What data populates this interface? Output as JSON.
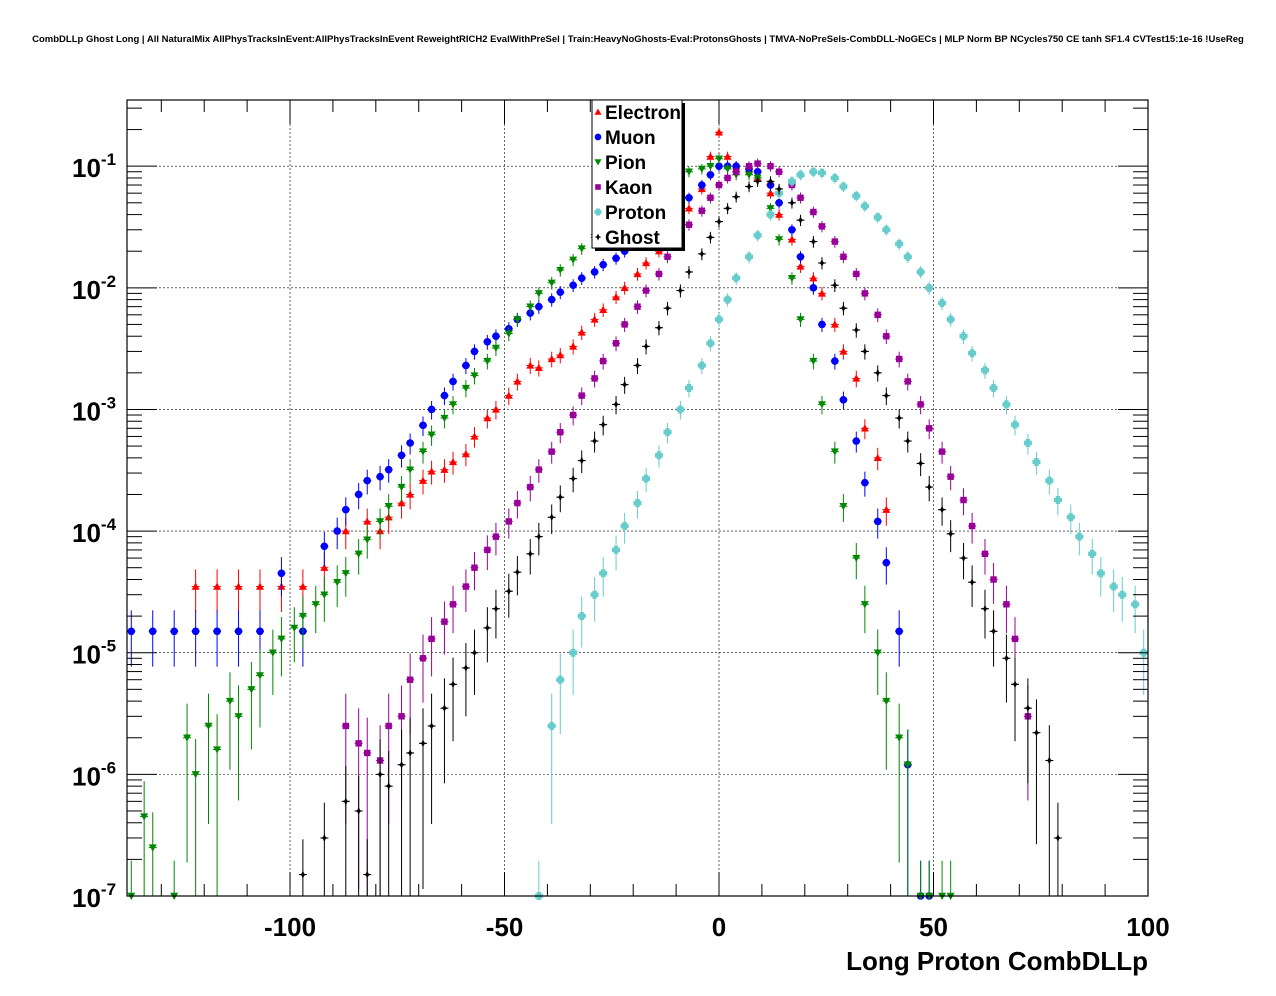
{
  "chart_data": {
    "type": "scatter",
    "title": "CombDLLp Ghost Long | All NaturalMix AllPhysTracksInEvent:AllPhysTracksInEvent ReweightRICH2 EvalWithPreSel | Train:HeavyNoGhosts-Eval:ProtonsGhosts | TMVA-NoPreSels-CombDLL-NoGECs | MLP Norm BP NCycles750 CE tanh SF1.4 CVTest15:1e-16 !UseReg",
    "xlabel": "Long Proton CombDLLp",
    "ylabel": "",
    "xlim": [
      -138,
      100
    ],
    "ylim": [
      1e-07,
      0.35
    ],
    "yscale": "log",
    "grid": true,
    "legend_position": "top-center",
    "xticks": [
      {
        "value": -100,
        "label": "-100"
      },
      {
        "value": -50,
        "label": "-50"
      },
      {
        "value": 0,
        "label": "0"
      },
      {
        "value": 50,
        "label": "50"
      },
      {
        "value": 100,
        "label": "100"
      }
    ],
    "yticks": [
      {
        "value": 1e-07,
        "base": "10",
        "exp": "-7"
      },
      {
        "value": 1e-06,
        "base": "10",
        "exp": "-6"
      },
      {
        "value": 1e-05,
        "base": "10",
        "exp": "-5"
      },
      {
        "value": 0.0001,
        "base": "10",
        "exp": "-4"
      },
      {
        "value": 0.001,
        "base": "10",
        "exp": "-3"
      },
      {
        "value": 0.01,
        "base": "10",
        "exp": "-2"
      },
      {
        "value": 0.1,
        "base": "10",
        "exp": "-1"
      }
    ],
    "series": [
      {
        "name": "Electron",
        "color": "#ff0000",
        "marker": "triangle-up",
        "x": [
          -122,
          -117,
          -112,
          -107,
          -102,
          -97,
          -92,
          -87,
          -82,
          -79,
          -77,
          -74,
          -72,
          -69,
          -67,
          -64,
          -62,
          -59,
          -57,
          -54,
          -52,
          -49,
          -47,
          -44,
          -42,
          -39,
          -37,
          -34,
          -32,
          -29,
          -27,
          -24,
          -22,
          -19,
          -17,
          -14,
          -12,
          -9,
          -7,
          -4,
          -2,
          0,
          2,
          4,
          7,
          9,
          12,
          14,
          17,
          19,
          22,
          24,
          27,
          29,
          32,
          34,
          37,
          39
        ],
        "y": [
          3.5e-05,
          3.5e-05,
          3.5e-05,
          3.5e-05,
          3.5e-05,
          3.5e-05,
          5e-05,
          0.0001,
          0.00012,
          0.0001,
          0.00013,
          0.00017,
          0.0002,
          0.00026,
          0.00031,
          0.00032,
          0.00037,
          0.00043,
          0.0006,
          0.00085,
          0.001,
          0.0013,
          0.0017,
          0.0023,
          0.0022,
          0.0026,
          0.0028,
          0.0033,
          0.0043,
          0.0055,
          0.0066,
          0.0084,
          0.01,
          0.013,
          0.016,
          0.02,
          0.025,
          0.032,
          0.045,
          0.065,
          0.12,
          0.19,
          0.12,
          0.1,
          0.09,
          0.08,
          0.06,
          0.04,
          0.025,
          0.015,
          0.012,
          0.009,
          0.005,
          0.003,
          0.0018,
          0.0007,
          0.0004,
          0.00015
        ]
      },
      {
        "name": "Muon",
        "color": "#0000ff",
        "marker": "circle",
        "x": [
          -137,
          -132,
          -127,
          -122,
          -117,
          -112,
          -107,
          -102,
          -97,
          -92,
          -89,
          -87,
          -84,
          -82,
          -79,
          -77,
          -74,
          -72,
          -69,
          -67,
          -64,
          -62,
          -59,
          -57,
          -54,
          -52,
          -49,
          -47,
          -44,
          -42,
          -39,
          -37,
          -34,
          -32,
          -29,
          -27,
          -24,
          -22,
          -19,
          -17,
          -14,
          -12,
          -9,
          -7,
          -4,
          -2,
          0,
          2,
          4,
          7,
          9,
          12,
          14,
          17,
          19,
          22,
          24,
          27,
          29,
          32,
          34,
          37,
          39,
          42,
          44,
          47,
          49
        ],
        "y": [
          1.5e-05,
          1.5e-05,
          1.5e-05,
          1.5e-05,
          1.5e-05,
          1.5e-05,
          1.5e-05,
          4.5e-05,
          1.5e-05,
          7.5e-05,
          0.0001,
          0.00015,
          0.0002,
          0.00026,
          0.00028,
          0.00032,
          0.00042,
          0.00053,
          0.00074,
          0.001,
          0.0013,
          0.0017,
          0.0023,
          0.003,
          0.0036,
          0.004,
          0.0046,
          0.0055,
          0.0062,
          0.007,
          0.008,
          0.0092,
          0.0105,
          0.012,
          0.0135,
          0.0155,
          0.0175,
          0.02,
          0.023,
          0.026,
          0.03,
          0.035,
          0.045,
          0.055,
          0.07,
          0.085,
          0.1,
          0.1,
          0.1,
          0.095,
          0.09,
          0.07,
          0.05,
          0.03,
          0.018,
          0.01,
          0.005,
          0.0025,
          0.0012,
          0.00055,
          0.00025,
          0.00012,
          5.5e-05,
          1.5e-05,
          1.2e-06,
          1e-07,
          1e-07
        ]
      },
      {
        "name": "Pion",
        "color": "#008800",
        "marker": "triangle-down",
        "x": [
          -137,
          -134,
          -132,
          -127,
          -124,
          -122,
          -119,
          -117,
          -114,
          -112,
          -109,
          -107,
          -104,
          -102,
          -99,
          -97,
          -94,
          -92,
          -89,
          -87,
          -84,
          -82,
          -79,
          -77,
          -74,
          -72,
          -69,
          -67,
          -64,
          -62,
          -59,
          -57,
          -54,
          -52,
          -49,
          -47,
          -44,
          -42,
          -39,
          -37,
          -34,
          -32,
          -29,
          -27,
          -24,
          -22,
          -19,
          -17,
          -14,
          -12,
          -9,
          -7,
          -4,
          -2,
          0,
          2,
          4,
          7,
          9,
          12,
          14,
          17,
          19,
          22,
          24,
          27,
          29,
          32,
          34,
          37,
          39,
          42,
          44,
          47,
          49,
          52,
          54
        ],
        "y": [
          1e-07,
          4.5e-07,
          2.5e-07,
          1e-07,
          2e-06,
          1e-06,
          2.5e-06,
          1.6e-06,
          4e-06,
          3e-06,
          5e-06,
          6.5e-06,
          1e-05,
          1.3e-05,
          1.6e-05,
          2e-05,
          2.5e-05,
          3e-05,
          3.8e-05,
          4.5e-05,
          6.5e-05,
          8.5e-05,
          0.00012,
          0.00016,
          0.00023,
          0.00032,
          0.00045,
          0.00062,
          0.00085,
          0.0011,
          0.0015,
          0.0019,
          0.0025,
          0.0032,
          0.0042,
          0.0055,
          0.007,
          0.009,
          0.011,
          0.014,
          0.017,
          0.021,
          0.026,
          0.032,
          0.039,
          0.047,
          0.056,
          0.065,
          0.073,
          0.08,
          0.085,
          0.09,
          0.095,
          0.1,
          0.115,
          0.095,
          0.085,
          0.085,
          0.08,
          0.045,
          0.025,
          0.012,
          0.0055,
          0.0025,
          0.0011,
          0.00045,
          0.00016,
          6e-05,
          2.5e-05,
          1e-05,
          4e-06,
          2e-06,
          1.2e-06,
          1e-07,
          1e-07,
          1e-07,
          1e-07
        ]
      },
      {
        "name": "Kaon",
        "color": "#990099",
        "marker": "square",
        "x": [
          -87,
          -84,
          -82,
          -79,
          -77,
          -74,
          -72,
          -69,
          -67,
          -64,
          -62,
          -59,
          -57,
          -54,
          -52,
          -49,
          -47,
          -44,
          -42,
          -39,
          -37,
          -34,
          -32,
          -29,
          -27,
          -24,
          -22,
          -19,
          -17,
          -14,
          -12,
          -9,
          -7,
          -4,
          -2,
          0,
          2,
          4,
          7,
          9,
          12,
          14,
          17,
          19,
          22,
          24,
          27,
          29,
          32,
          34,
          37,
          39,
          42,
          44,
          47,
          49,
          52,
          54,
          57,
          59,
          62,
          64,
          67,
          69,
          72
        ],
        "y": [
          2.5e-06,
          1.8e-06,
          1.5e-06,
          1.3e-06,
          2.5e-06,
          3e-06,
          6e-06,
          9e-06,
          1.3e-05,
          1.8e-05,
          2.5e-05,
          3.5e-05,
          5e-05,
          7e-05,
          9e-05,
          0.00012,
          0.00017,
          0.00023,
          0.00032,
          0.00045,
          0.00065,
          0.0009,
          0.0013,
          0.0018,
          0.0025,
          0.0035,
          0.005,
          0.007,
          0.0095,
          0.013,
          0.018,
          0.025,
          0.033,
          0.043,
          0.055,
          0.07,
          0.08,
          0.09,
          0.1,
          0.105,
          0.1,
          0.09,
          0.07,
          0.055,
          0.042,
          0.032,
          0.024,
          0.018,
          0.013,
          0.009,
          0.006,
          0.004,
          0.0026,
          0.0017,
          0.0011,
          0.0007,
          0.00045,
          0.00028,
          0.00018,
          0.00011,
          6.5e-05,
          4e-05,
          2.5e-05,
          1.3e-05,
          3e-06
        ]
      },
      {
        "name": "Proton",
        "color": "#66cccc",
        "marker": "cross",
        "x": [
          -42,
          -39,
          -37,
          -34,
          -32,
          -29,
          -27,
          -24,
          -22,
          -19,
          -17,
          -14,
          -12,
          -9,
          -7,
          -4,
          -2,
          0,
          2,
          4,
          7,
          9,
          12,
          14,
          17,
          19,
          22,
          24,
          27,
          29,
          32,
          34,
          37,
          39,
          42,
          44,
          47,
          49,
          52,
          54,
          57,
          59,
          62,
          64,
          67,
          69,
          72,
          74,
          77,
          79,
          82,
          84,
          87,
          89,
          92,
          94,
          97,
          99
        ],
        "y": [
          1e-07,
          2.5e-06,
          6e-06,
          1e-05,
          2e-05,
          3e-05,
          4.5e-05,
          7e-05,
          0.00011,
          0.00017,
          0.00027,
          0.00042,
          0.00065,
          0.001,
          0.0015,
          0.0023,
          0.0035,
          0.0055,
          0.008,
          0.012,
          0.018,
          0.027,
          0.04,
          0.06,
          0.075,
          0.085,
          0.09,
          0.088,
          0.08,
          0.068,
          0.057,
          0.047,
          0.038,
          0.03,
          0.023,
          0.018,
          0.0135,
          0.01,
          0.0075,
          0.0055,
          0.004,
          0.0029,
          0.0021,
          0.0015,
          0.0011,
          0.00075,
          0.00053,
          0.00037,
          0.00026,
          0.00018,
          0.00013,
          9e-05,
          6.5e-05,
          4.5e-05,
          3.5e-05,
          3e-05,
          2.5e-05,
          1e-05
        ]
      },
      {
        "name": "Ghost",
        "color": "#000000",
        "marker": "star",
        "x": [
          -97,
          -92,
          -87,
          -84,
          -82,
          -79,
          -77,
          -74,
          -72,
          -69,
          -67,
          -64,
          -62,
          -59,
          -57,
          -54,
          -52,
          -49,
          -47,
          -44,
          -42,
          -39,
          -37,
          -34,
          -32,
          -29,
          -27,
          -24,
          -22,
          -19,
          -17,
          -14,
          -12,
          -9,
          -7,
          -4,
          -2,
          0,
          2,
          4,
          7,
          9,
          12,
          14,
          17,
          19,
          22,
          24,
          27,
          29,
          32,
          34,
          37,
          39,
          42,
          44,
          47,
          49,
          52,
          54,
          57,
          59,
          62,
          64,
          67,
          69,
          72,
          74,
          77,
          79
        ],
        "y": [
          1.5e-07,
          3e-07,
          6e-07,
          5e-07,
          1.5e-07,
          1e-06,
          8e-07,
          1.2e-06,
          1.5e-06,
          1.8e-06,
          2.5e-06,
          3.5e-06,
          5.5e-06,
          7.5e-06,
          1e-05,
          1.6e-05,
          2.3e-05,
          3.2e-05,
          4.6e-05,
          6.5e-05,
          9e-05,
          0.00013,
          0.00019,
          0.00027,
          0.00038,
          0.00055,
          0.00075,
          0.0011,
          0.0016,
          0.0023,
          0.0033,
          0.0047,
          0.0068,
          0.0095,
          0.0135,
          0.019,
          0.026,
          0.035,
          0.045,
          0.056,
          0.068,
          0.075,
          0.075,
          0.065,
          0.05,
          0.036,
          0.024,
          0.016,
          0.0105,
          0.0068,
          0.0045,
          0.003,
          0.002,
          0.0013,
          0.00085,
          0.00055,
          0.00036,
          0.00023,
          0.00015,
          9.5e-05,
          6e-05,
          3.8e-05,
          2.3e-05,
          1.5e-05,
          9e-06,
          5.5e-06,
          3.5e-06,
          2.2e-06,
          1.3e-06,
          3e-07
        ]
      }
    ]
  }
}
